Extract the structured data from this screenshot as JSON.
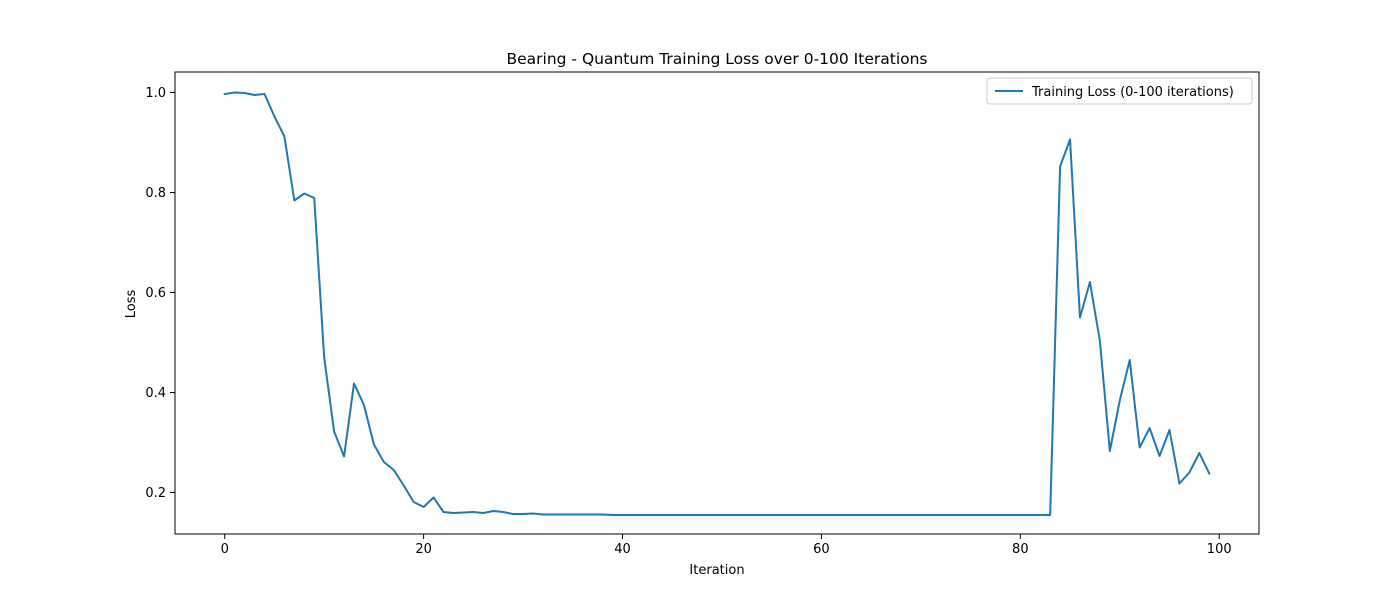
{
  "chart_data": {
    "type": "line",
    "title": "Bearing - Quantum Training Loss over 0-100 Iterations",
    "xlabel": "Iteration",
    "ylabel": "Loss",
    "xlim": [
      -5,
      104
    ],
    "ylim": [
      0.117,
      1.041
    ],
    "xticks": [
      0,
      20,
      40,
      60,
      80,
      100
    ],
    "yticks": [
      0.2,
      0.4,
      0.6,
      0.8,
      1.0
    ],
    "xtick_labels": [
      "0",
      "20",
      "40",
      "60",
      "80",
      "100"
    ],
    "ytick_labels": [
      "0.2",
      "0.4",
      "0.6",
      "0.8",
      "1.0"
    ],
    "grid": false,
    "legend_position": "top-right",
    "series": [
      {
        "name": "Training Loss (0-100 iterations)",
        "color": "#1f77b4",
        "x": [
          0,
          1,
          2,
          3,
          4,
          5,
          6,
          7,
          8,
          9,
          10,
          11,
          12,
          13,
          14,
          15,
          16,
          17,
          18,
          19,
          20,
          21,
          22,
          23,
          24,
          25,
          26,
          27,
          28,
          29,
          30,
          31,
          32,
          33,
          34,
          35,
          36,
          37,
          38,
          39,
          40,
          41,
          42,
          43,
          44,
          45,
          46,
          47,
          48,
          49,
          50,
          51,
          52,
          53,
          54,
          55,
          56,
          57,
          58,
          59,
          60,
          61,
          62,
          63,
          64,
          65,
          66,
          67,
          68,
          69,
          70,
          71,
          72,
          73,
          74,
          75,
          76,
          77,
          78,
          79,
          80,
          81,
          82,
          83,
          84,
          85,
          86,
          87,
          88,
          89,
          90,
          91,
          92,
          93,
          94,
          95,
          96,
          97,
          98,
          99
        ],
        "values": [
          0.997,
          1.0,
          0.999,
          0.995,
          0.997,
          0.952,
          0.912,
          0.784,
          0.798,
          0.789,
          0.47,
          0.322,
          0.272,
          0.418,
          0.375,
          0.296,
          0.261,
          0.245,
          0.214,
          0.181,
          0.171,
          0.19,
          0.161,
          0.159,
          0.16,
          0.161,
          0.159,
          0.163,
          0.161,
          0.157,
          0.157,
          0.158,
          0.156,
          0.156,
          0.156,
          0.156,
          0.156,
          0.156,
          0.156,
          0.155,
          0.155,
          0.155,
          0.155,
          0.155,
          0.155,
          0.155,
          0.155,
          0.155,
          0.155,
          0.155,
          0.155,
          0.155,
          0.155,
          0.155,
          0.155,
          0.155,
          0.155,
          0.155,
          0.155,
          0.155,
          0.155,
          0.155,
          0.155,
          0.155,
          0.155,
          0.155,
          0.155,
          0.155,
          0.155,
          0.155,
          0.155,
          0.155,
          0.155,
          0.155,
          0.155,
          0.155,
          0.155,
          0.155,
          0.155,
          0.155,
          0.155,
          0.155,
          0.155,
          0.155,
          0.852,
          0.906,
          0.55,
          0.621,
          0.503,
          0.283,
          0.384,
          0.465,
          0.29,
          0.329,
          0.273,
          0.325,
          0.218,
          0.24,
          0.279,
          0.238
        ]
      }
    ]
  }
}
